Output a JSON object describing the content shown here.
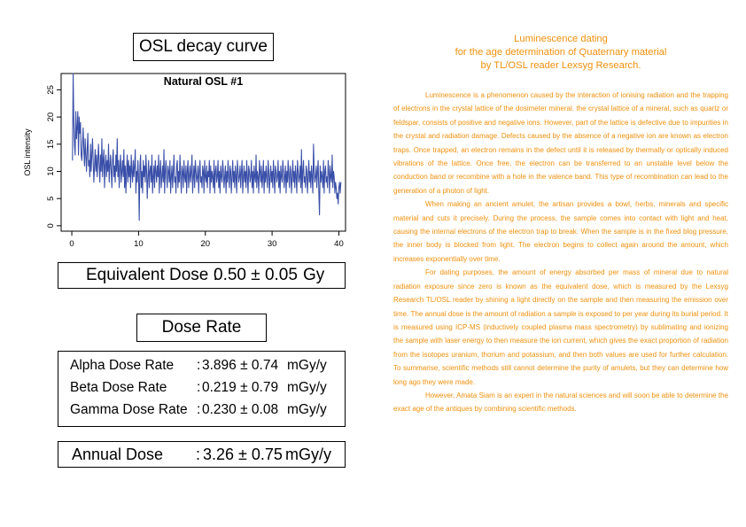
{
  "left_panel": {
    "chart_title": "OSL decay curve",
    "equivalent_dose": {
      "label": "Equivalent Dose :",
      "value": "0.50 ± 0.05",
      "unit": "Gy"
    },
    "dose_rate_title": "Dose Rate",
    "dose_rates": [
      {
        "label": "Alpha Dose Rate",
        "colon": ":",
        "value": "3.896 ± 0.74",
        "unit": "mGy/y"
      },
      {
        "label": "Beta Dose Rate",
        "colon": ":",
        "value": "0.219 ± 0.79",
        "unit": "mGy/y"
      },
      {
        "label": "Gamma Dose Rate",
        "colon": ":",
        "value": "0.230 ± 0.08",
        "unit": "mGy/y"
      }
    ],
    "annual_dose": {
      "label": "Annual Dose",
      "colon": ":",
      "value": "3.26 ± 0.75",
      "unit": "mGy/y"
    }
  },
  "right_panel": {
    "heading": [
      "Luminescence dating",
      "for the age determination of Quaternary material",
      "by TL/OSL reader Lexsyg Research."
    ],
    "paragraphs": [
      "Luminescence is a phenomenon caused by the interaction of ionising radiation and the trapping of electrons in the crystal lattice of the dosimeter mineral. the crystal lattice of a mineral, such as quartz or feldspar, consists of positive and negative ions. However, part of the lattice is defective due to impurities in the crystal and radiation damage. Defects caused by the absence of a negative ion are known as electron traps. Once trapped, an electron remains in the defect until it is released by thermally or optically induced vibrations of the lattice. Once free, the electron can be transferred to an unstable level below the conduction band or recombine with a hole in the valence band. This type of recombination can lead to the generation of a photon of light.",
      "When making an ancient amulet, the artisan provides a bowl, herbs, minerals and specific material and cuts it precisely. During the process, the sample comes into contact with light and heat, causing the internal electrons of the electron trap to break. When the sample is in the fixed blog pressure, the inner body is blocked from light. The electron begins to collect again around the amount, which increases exponentially over time.",
      "For dating purposes, the amount of energy absorbed per mass of mineral due to natural radiation exposure since zero is known as the equivalent dose, which is measured by the Lexsyg Research TL/OSL reader by shining a light directly on the sample and then measuring the emission over time. The annual dose is the amount of radiation a sample is exposed to per year during its burial period. It is measured using ICP-MS (inductively coupled plasma mass spectrometry) by sublimating and ionizing the sample with laser energy to then measure the ion current, which gives the exact proportion of radiation from the isotopes uranium, thorium and potassium, and then both values are used for further calculation. To summarise, scientific methods still cannot determine the purity of amulets, but they can determine how long ago they were made.",
      "However, Amata Siam is an expert in the natural sciences and will soon be able to determine the exact age of the antiques by combining scientific methods."
    ]
  },
  "chart_data": {
    "type": "line",
    "title": "Natural OSL #1",
    "xlabel": "",
    "ylabel": "OSL intensity",
    "xlim": [
      -1.6,
      41
    ],
    "ylim": [
      -1,
      28
    ],
    "xticks": [
      0,
      10,
      20,
      30,
      40
    ],
    "yticks": [
      0,
      5,
      10,
      15,
      20,
      25
    ],
    "grid": false,
    "color": "#3a4fa8",
    "series": [
      {
        "x_start": 0.1,
        "x_step": 0.1,
        "values": [
          12,
          28,
          19,
          15,
          13,
          21,
          16,
          18,
          21,
          13,
          20,
          17,
          19,
          13,
          12,
          15,
          18,
          14,
          11,
          16,
          13,
          10,
          14,
          17,
          11,
          12,
          9,
          15,
          10,
          13,
          16,
          12,
          8,
          11,
          14,
          10,
          13,
          9,
          12,
          15,
          11,
          8,
          13,
          10,
          16,
          9,
          12,
          14,
          7,
          11,
          13,
          9,
          12,
          10,
          15,
          8,
          11,
          13,
          10,
          7,
          12,
          14,
          9,
          11,
          8,
          13,
          10,
          16,
          9,
          12,
          7,
          11,
          13,
          8,
          10,
          12,
          9,
          14,
          7,
          11,
          6,
          10,
          13,
          8,
          12,
          9,
          11,
          7,
          13,
          10,
          8,
          12,
          9,
          11,
          14,
          6,
          10,
          8,
          12,
          9,
          1,
          11,
          13,
          7,
          10,
          6,
          12,
          9,
          11,
          8,
          13,
          10,
          5,
          9,
          12,
          7,
          10,
          11,
          8,
          13,
          6,
          9,
          11,
          7,
          12,
          10,
          8,
          11,
          9,
          13,
          6,
          10,
          12,
          7,
          9,
          11,
          8,
          14,
          6,
          10,
          12,
          9,
          7,
          11,
          10,
          8,
          12,
          6,
          9,
          11,
          7,
          10,
          13,
          8,
          9,
          6,
          11,
          12,
          7,
          10,
          8,
          13,
          9,
          6,
          11,
          10,
          7,
          12,
          9,
          8,
          11,
          6,
          10,
          12,
          7,
          9,
          11,
          8,
          10,
          13,
          6,
          9,
          11,
          7,
          12,
          10,
          8,
          9,
          11,
          6,
          10,
          12,
          8,
          9,
          7,
          11,
          10,
          6,
          12,
          9,
          8,
          11,
          7,
          10,
          9,
          12,
          6,
          11,
          8,
          10,
          9,
          7,
          12,
          6,
          10,
          11,
          8,
          9,
          12,
          7,
          10,
          6,
          11,
          9,
          8,
          12,
          10,
          7,
          9,
          11,
          6,
          10,
          8,
          12,
          9,
          7,
          11,
          10,
          6,
          9,
          12,
          8,
          10,
          7,
          11,
          9,
          6,
          12,
          10,
          8,
          9,
          11,
          7,
          10,
          12,
          6,
          9,
          11,
          8,
          10,
          7,
          12,
          9,
          6,
          11,
          10,
          8,
          9,
          12,
          7,
          10,
          6,
          11,
          9,
          8,
          13,
          7,
          10,
          9,
          6,
          12,
          10,
          8,
          11,
          7,
          9,
          12,
          6,
          10,
          8,
          11,
          9,
          7,
          12,
          10,
          6,
          9,
          11,
          8,
          10,
          7,
          12,
          9,
          6,
          11,
          10,
          8,
          9,
          12,
          7,
          10,
          6,
          11,
          9,
          8,
          12,
          10,
          7,
          9,
          11,
          6,
          10,
          8,
          12,
          9,
          7,
          11,
          10,
          6,
          9,
          12,
          8,
          10,
          7,
          11,
          9,
          6,
          12,
          10,
          8,
          9,
          11,
          7,
          14,
          6,
          10,
          12,
          8,
          9,
          7,
          11,
          10,
          6,
          9,
          12,
          8,
          10,
          7,
          11,
          9,
          6,
          15,
          10,
          8,
          9,
          11,
          7,
          10,
          12,
          6,
          2,
          11,
          8,
          10,
          9,
          7,
          12,
          6,
          10,
          11,
          8,
          9,
          7,
          12,
          10,
          6,
          11,
          9,
          8,
          13,
          7,
          10,
          9,
          6,
          8,
          7,
          5,
          6,
          4,
          7,
          8,
          6,
          8
        ]
      }
    ]
  }
}
